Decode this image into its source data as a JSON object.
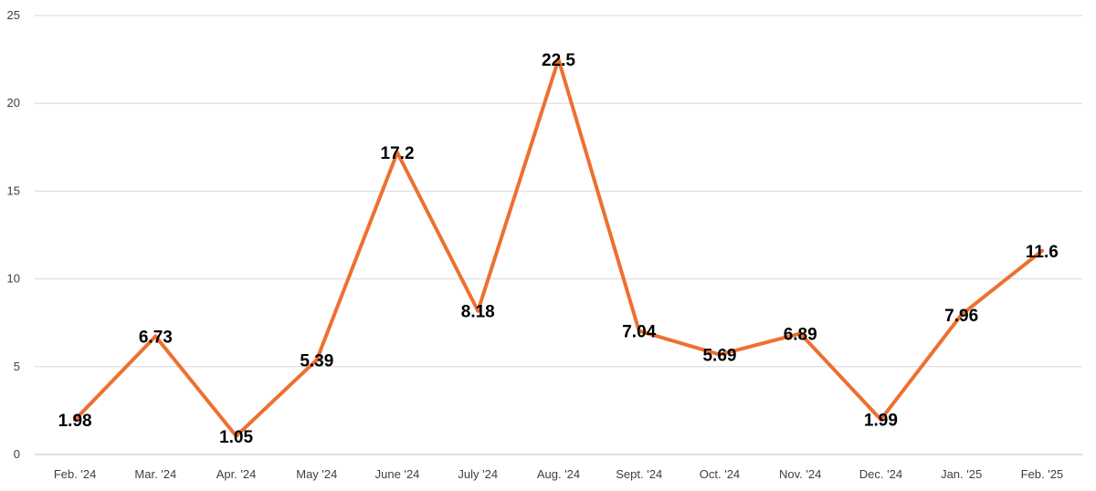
{
  "chart_data": {
    "type": "line",
    "title": "",
    "xlabel": "",
    "ylabel": "",
    "categories": [
      "Feb. '24",
      "Mar. '24",
      "Apr. '24",
      "May '24",
      "June '24",
      "July '24",
      "Aug. '24",
      "Sept. '24",
      "Oct. '24",
      "Nov. '24",
      "Dec. '24",
      "Jan. '25",
      "Feb. '25"
    ],
    "series": [
      {
        "values": [
          1.98,
          6.73,
          1.05,
          5.39,
          17.2,
          8.18,
          22.5,
          7.04,
          5.69,
          6.89,
          1.99,
          7.96,
          11.6
        ],
        "labels": [
          "1.98",
          "6.73",
          "1.05",
          "5.39",
          "17.2",
          "8.18",
          "22.5",
          "7.04",
          "5.69",
          "6.89",
          "1.99",
          "7.96",
          "11.6"
        ],
        "color": "#ed7031"
      }
    ],
    "ylim": [
      0,
      25
    ],
    "yticks": [
      "0",
      "5",
      "10",
      "15",
      "20",
      "25"
    ],
    "grid": true,
    "legend": "none"
  }
}
